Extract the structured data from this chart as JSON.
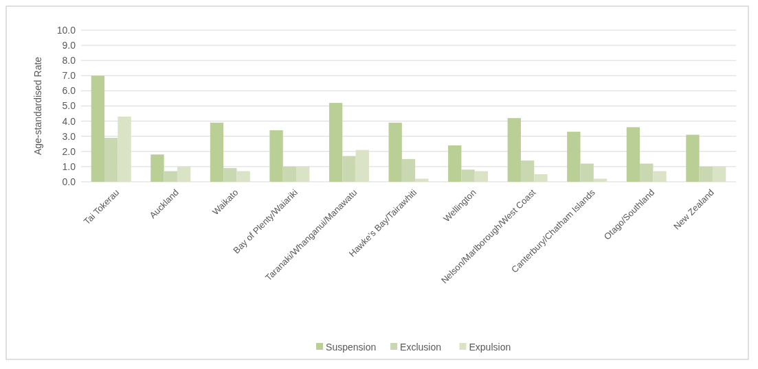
{
  "chart_data": {
    "type": "bar",
    "ylabel": "Age-standardised Rate",
    "categories": [
      "Tai Tokerau",
      "Auckland",
      "Waikato",
      "Bay of Plenty/Waiariki",
      "Taranaki/Whanganui/Manawatu",
      "Hawke's Bay/Tairawhiti",
      "Wellington",
      "Nelson/Marlborough/West Coast",
      "Canterbury/Chatham Islands",
      "Otago/Southland",
      "New Zealand"
    ],
    "series": [
      {
        "name": "Suspension",
        "color": "#b9cf96",
        "values": [
          7.0,
          1.8,
          3.9,
          3.4,
          5.2,
          3.9,
          2.4,
          4.2,
          3.3,
          3.6,
          3.1
        ]
      },
      {
        "name": "Exclusion",
        "color": "#c9d8b0",
        "values": [
          2.9,
          0.7,
          0.9,
          1.0,
          1.7,
          1.5,
          0.8,
          1.4,
          1.2,
          1.2,
          1.0
        ]
      },
      {
        "name": "Expulsion",
        "color": "#dae3c6",
        "values": [
          4.3,
          1.0,
          0.7,
          1.0,
          2.1,
          0.2,
          0.7,
          0.5,
          0.2,
          0.7,
          1.0
        ]
      }
    ],
    "ylim": [
      0,
      10
    ],
    "yticks": [
      {
        "value": 0,
        "label": "0.0"
      },
      {
        "value": 1,
        "label": "1.0"
      },
      {
        "value": 2,
        "label": "2.0"
      },
      {
        "value": 3,
        "label": "3.0"
      },
      {
        "value": 4,
        "label": "4.0"
      },
      {
        "value": 5,
        "label": "5.0"
      },
      {
        "value": 6,
        "label": "6.0"
      },
      {
        "value": 7,
        "label": "7.0"
      },
      {
        "value": 8,
        "label": "8.0"
      },
      {
        "value": 9,
        "label": "9.0"
      },
      {
        "value": 10,
        "label": "10.0"
      }
    ],
    "grid": "y",
    "legend": "bottom"
  }
}
